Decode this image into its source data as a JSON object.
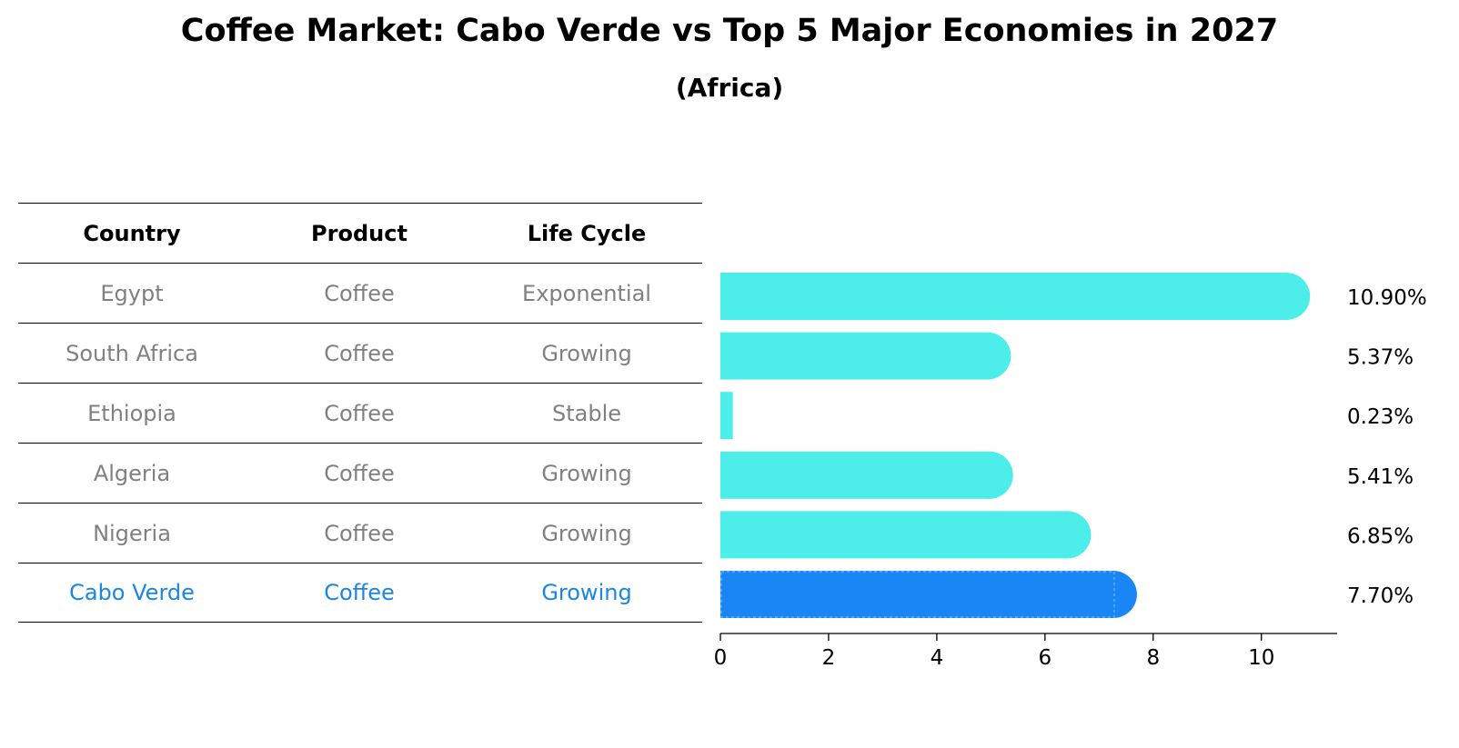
{
  "title": "Coffee Market: Cabo Verde vs Top 5 Major Economies in 2027",
  "subtitle": "(Africa)",
  "table": {
    "headers": [
      "Country",
      "Product",
      "Life Cycle"
    ],
    "rows": [
      {
        "country": "Egypt",
        "product": "Coffee",
        "life_cycle": "Exponential"
      },
      {
        "country": "South Africa",
        "product": "Coffee",
        "life_cycle": "Growing"
      },
      {
        "country": "Ethiopia",
        "product": "Coffee",
        "life_cycle": "Stable"
      },
      {
        "country": "Algeria",
        "product": "Coffee",
        "life_cycle": "Growing"
      },
      {
        "country": "Nigeria",
        "product": "Coffee",
        "life_cycle": "Growing"
      },
      {
        "country": "Cabo Verde",
        "product": "Coffee",
        "life_cycle": "Growing",
        "highlight": true
      }
    ]
  },
  "chart_data": {
    "type": "bar",
    "orientation": "horizontal",
    "categories": [
      "Egypt",
      "South Africa",
      "Ethiopia",
      "Algeria",
      "Nigeria",
      "Cabo Verde"
    ],
    "values": [
      10.9,
      5.37,
      0.23,
      5.41,
      6.85,
      7.7
    ],
    "value_labels": [
      "10.90%",
      "5.37%",
      "0.23%",
      "5.41%",
      "6.85%",
      "7.70%"
    ],
    "xlim": [
      0,
      11.4
    ],
    "xticks": [
      0,
      2,
      4,
      6,
      8,
      10
    ],
    "xlabel": "",
    "ylabel": "",
    "grid": false,
    "colors": {
      "default": "#4deeea",
      "highlight": "#1a86f5",
      "highlight_text": "#1a86e0",
      "table_text": "#808080"
    },
    "highlight_category": "Cabo Verde"
  }
}
